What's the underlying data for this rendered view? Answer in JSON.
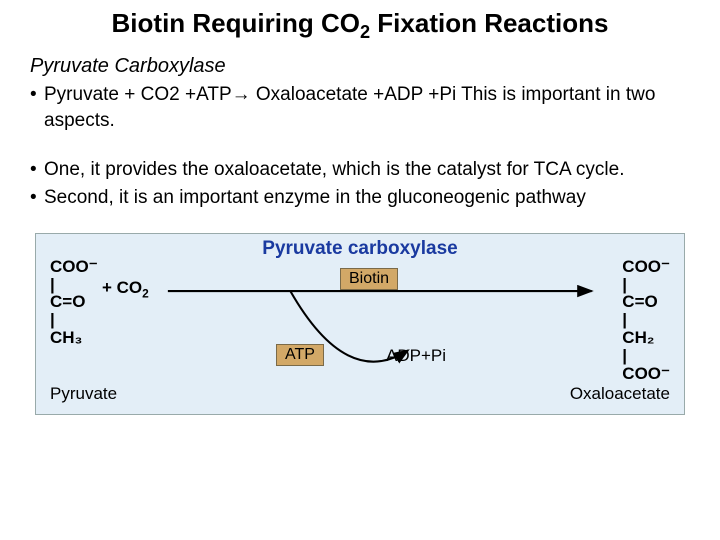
{
  "title_html": "Biotin Requiring CO<sub>2</sub> Fixation Reactions",
  "subtitle": "Pyruvate Carboxylase",
  "bullets": [
    {
      "text": "Pyruvate + CO2 +ATP→ Oxaloacetate +ADP +Pi This is important in two aspects.",
      "gap": false
    },
    {
      "text": "One, it provides the oxaloacetate, which is the catalyst for TCA cycle.",
      "gap": true
    },
    {
      "text": "Second,  it is an important enzyme in the gluconeogenic pathway",
      "gap": false
    }
  ],
  "diagram": {
    "title": "Pyruvate carboxylase",
    "background": "#e3eef7",
    "title_color": "#1a3aa0",
    "tag_bg": "#d2a867",
    "tag_border": "#7a6a49",
    "arrow_color": "#000000",
    "left_structure": "COO⁻\n|\nC=O\n|\nCH₃",
    "plus_co2_html": "+ CO<sub>2</sub>",
    "right_structure": "COO⁻\n|\nC=O\n|\nCH₂\n|\nCOO⁻",
    "left_name": "Pyruvate",
    "right_name": "Oxaloacetate",
    "biotin_label": "Biotin",
    "atp_label": "ATP",
    "adp_label": "ADP+Pi"
  }
}
